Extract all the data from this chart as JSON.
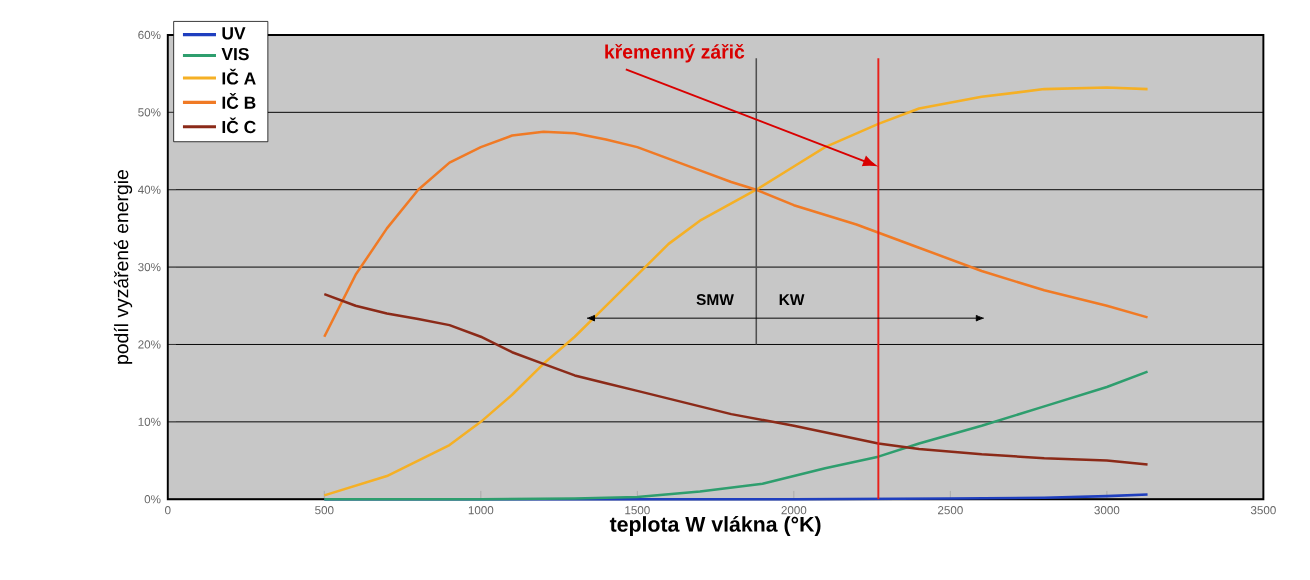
{
  "chart_data": {
    "type": "line",
    "xlabel": "teplota W vlákna (°K)",
    "ylabel": "podíl vyzářené energie",
    "xlim": [
      0,
      3500
    ],
    "xticks": [
      0,
      500,
      1000,
      1500,
      2000,
      2500,
      3000,
      3500
    ],
    "ylim": [
      0,
      60
    ],
    "yticks": [
      {
        "value": 0,
        "label": "0%"
      },
      {
        "value": 10,
        "label": "10%"
      },
      {
        "value": 20,
        "label": "20%"
      },
      {
        "value": 30,
        "label": "30%"
      },
      {
        "value": 40,
        "label": "40%"
      },
      {
        "value": 50,
        "label": "50%"
      },
      {
        "value": 60,
        "label": "60%"
      }
    ],
    "grid": "y",
    "legend": "top left",
    "marker": "none",
    "line_style": "solid",
    "series": [
      {
        "name": "UV",
        "color": "#1f3fbf",
        "x": [
          500,
          1000,
          1500,
          2000,
          2500,
          2800,
          3000,
          3130
        ],
        "values": [
          0,
          0,
          0,
          0,
          0.1,
          0.2,
          0.4,
          0.6
        ]
      },
      {
        "name": "VIS",
        "color": "#2e9e6e",
        "x": [
          500,
          1000,
          1300,
          1500,
          1700,
          1900,
          2100,
          2270,
          2400,
          2600,
          2800,
          3000,
          3130
        ],
        "values": [
          0,
          0,
          0.1,
          0.3,
          1,
          2,
          4,
          5.5,
          7.2,
          9.5,
          12,
          14.5,
          16.5
        ]
      },
      {
        "name": "IČ A",
        "color": "#f5b025",
        "x": [
          500,
          700,
          900,
          1000,
          1100,
          1200,
          1300,
          1400,
          1500,
          1600,
          1700,
          1880,
          2000,
          2100,
          2270,
          2400,
          2600,
          2800,
          3000,
          3130
        ],
        "values": [
          0.5,
          3,
          7,
          10,
          13.5,
          17.5,
          21,
          25,
          29,
          33,
          36,
          40,
          43,
          45.5,
          48.5,
          50.5,
          52,
          53,
          53.2,
          53
        ]
      },
      {
        "name": "IČ B",
        "color": "#f07a25",
        "x": [
          500,
          550,
          600,
          700,
          800,
          900,
          1000,
          1100,
          1200,
          1300,
          1400,
          1500,
          1600,
          1700,
          1800,
          1880,
          2000,
          2200,
          2400,
          2600,
          2800,
          3000,
          3130
        ],
        "values": [
          21,
          25,
          29,
          35,
          40,
          43.5,
          45.5,
          47,
          47.5,
          47.3,
          46.5,
          45.5,
          44,
          42.5,
          41,
          40,
          38,
          35.5,
          32.5,
          29.5,
          27,
          25,
          23.5
        ]
      },
      {
        "name": "IČ C",
        "color": "#8b2a18",
        "x": [
          500,
          600,
          700,
          800,
          900,
          1000,
          1100,
          1200,
          1300,
          1400,
          1500,
          1600,
          1700,
          1800,
          2000,
          2270,
          2400,
          2600,
          2800,
          3000,
          3130
        ],
        "values": [
          26.5,
          25,
          24,
          23.3,
          22.5,
          21,
          19,
          17.5,
          16,
          15,
          14,
          13,
          12,
          11,
          9.5,
          7.2,
          6.5,
          5.8,
          5.3,
          5,
          4.5
        ]
      }
    ],
    "ref_lines": [
      {
        "axis": "x",
        "value": 2270,
        "color": "#e8201a"
      },
      {
        "axis": "x",
        "value": 1880,
        "color": "#505050"
      }
    ],
    "annotations": [
      {
        "text": "křemenný zářič",
        "x": 2270,
        "y": 43
      },
      "SMW",
      "KW"
    ]
  }
}
